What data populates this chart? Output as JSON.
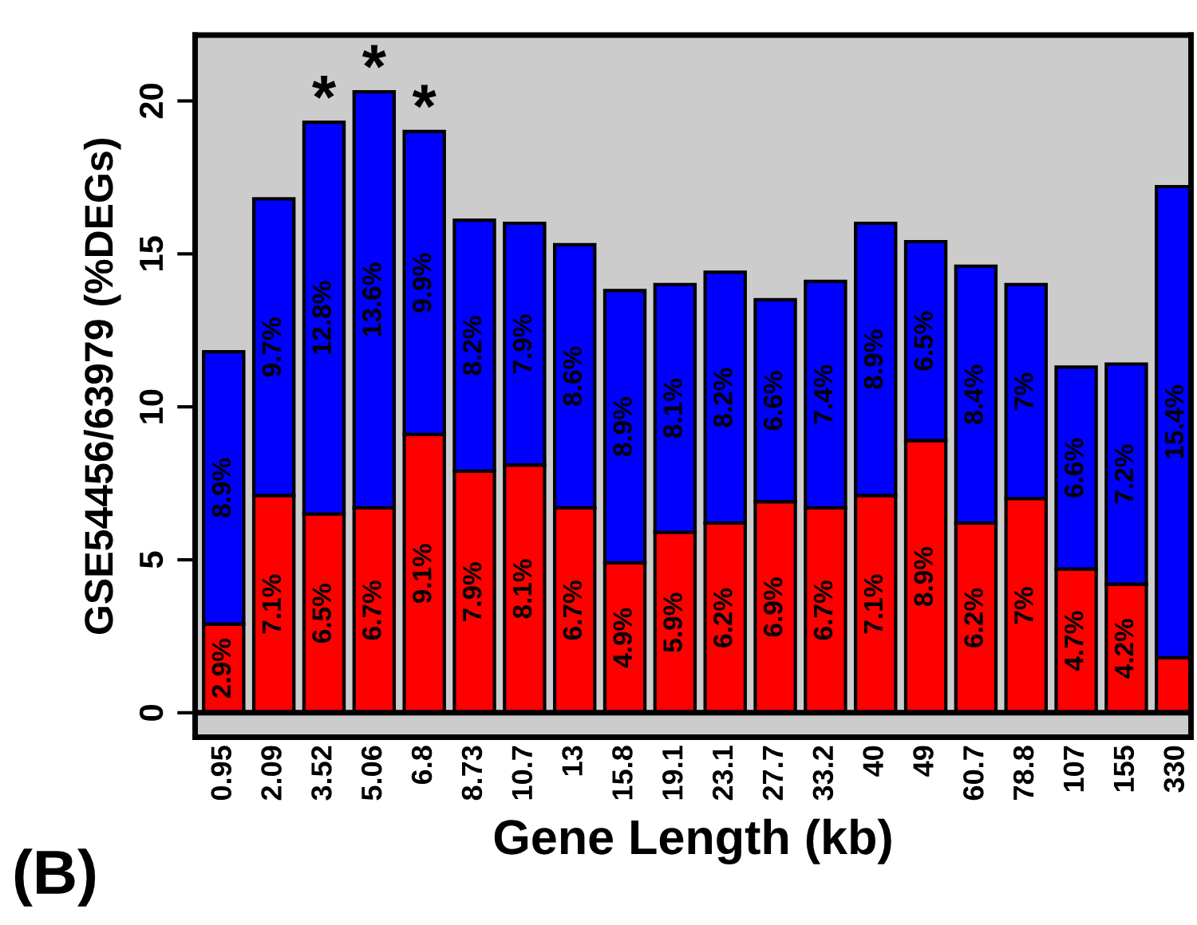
{
  "chart_data": {
    "type": "bar",
    "stacked": true,
    "xlabel": "Gene Length (kb)",
    "ylabel": "GSE54456/63979 (%DEGs)",
    "categories": [
      "0.95",
      "2.09",
      "3.52",
      "5.06",
      "6.8",
      "8.73",
      "10.7",
      "13",
      "15.8",
      "19.1",
      "23.1",
      "27.7",
      "33.2",
      "40",
      "49",
      "60.7",
      "78.8",
      "107",
      "155",
      "330"
    ],
    "series": [
      {
        "color": "#ff0000",
        "values": [
          2.9,
          7.1,
          6.5,
          6.7,
          9.1,
          7.9,
          8.1,
          6.7,
          4.9,
          5.9,
          6.2,
          6.9,
          6.7,
          7.1,
          8.9,
          6.2,
          7,
          4.7,
          4.2,
          1.8
        ],
        "value_labels": [
          "2.9%",
          "7.1%",
          "6.5%",
          "6.7%",
          "9.1%",
          "7.9%",
          "8.1%",
          "6.7%",
          "4.9%",
          "5.9%",
          "6.2%",
          "6.9%",
          "6.7%",
          "7.1%",
          "8.9%",
          "6.2%",
          "7%",
          "4.7%",
          "4.2%",
          null
        ]
      },
      {
        "color": "#0000ff",
        "values": [
          8.9,
          9.7,
          12.8,
          13.6,
          9.9,
          8.2,
          7.9,
          8.6,
          8.9,
          8.1,
          8.2,
          6.6,
          7.4,
          8.9,
          6.5,
          8.4,
          7,
          6.6,
          7.2,
          15.4
        ],
        "value_labels": [
          "8.9%",
          "9.7%",
          "12.8%",
          "13.6%",
          "9.9%",
          "8.2%",
          "7.9%",
          "8.6%",
          "8.9%",
          "8.1%",
          "8.2%",
          "6.6%",
          "7.4%",
          "8.9%",
          "6.5%",
          "8.4%",
          "7%",
          "6.6%",
          "7.2%",
          "15.4%"
        ]
      }
    ],
    "ylim": [
      -0.8,
      22.15
    ],
    "yticks": [
      0,
      5,
      10,
      15,
      20
    ],
    "grid": false,
    "legend": false,
    "ref_lines": [
      {
        "axis": "y",
        "value": 0,
        "color": "#000000"
      }
    ],
    "annotations": [
      {
        "text": "*",
        "x": "3.52",
        "y": 19.3
      },
      {
        "text": "*",
        "x": "5.06",
        "y": 20.3
      },
      {
        "text": "*",
        "x": "6.8",
        "y": 19.0
      },
      "(B)"
    ]
  }
}
